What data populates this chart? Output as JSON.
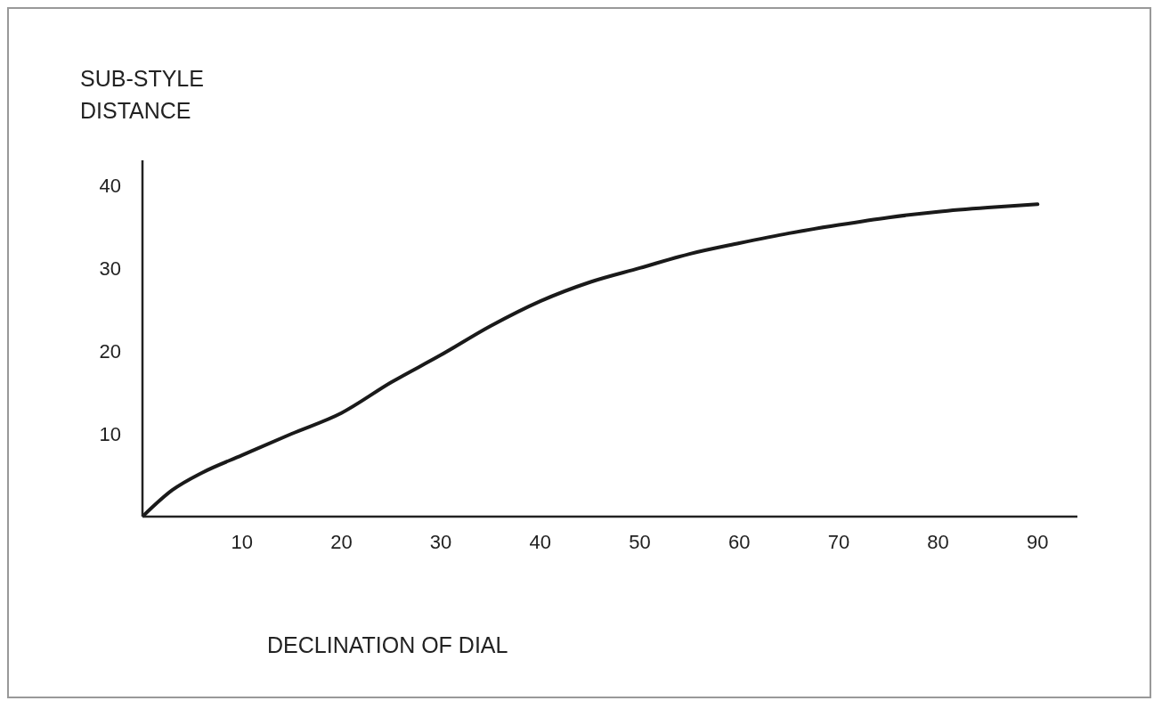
{
  "chart_data": {
    "type": "line",
    "xlabel": "DECLINATION OF DIAL",
    "ylabel": "SUB-STYLE\nDISTANCE",
    "x": [
      0,
      3,
      6,
      10,
      15,
      20,
      25,
      30,
      35,
      40,
      45,
      50,
      55,
      60,
      65,
      70,
      75,
      80,
      85,
      90
    ],
    "series": [
      {
        "color": "#1a1a1a",
        "values": [
          0,
          3.2,
          5.3,
          7.4,
          10,
          12.5,
          16.2,
          19.5,
          23,
          26,
          28.3,
          30,
          31.7,
          33,
          34.2,
          35.2,
          36.1,
          36.8,
          37.3,
          37.7
        ]
      }
    ],
    "xlim": [
      0,
      94
    ],
    "ylim": [
      0,
      43
    ],
    "xticks": [
      10,
      20,
      30,
      40,
      50,
      60,
      70,
      80,
      90
    ],
    "yticks": [
      10,
      20,
      30,
      40
    ],
    "grid": false,
    "legend": false,
    "marker": "none",
    "line_style": "solid"
  }
}
